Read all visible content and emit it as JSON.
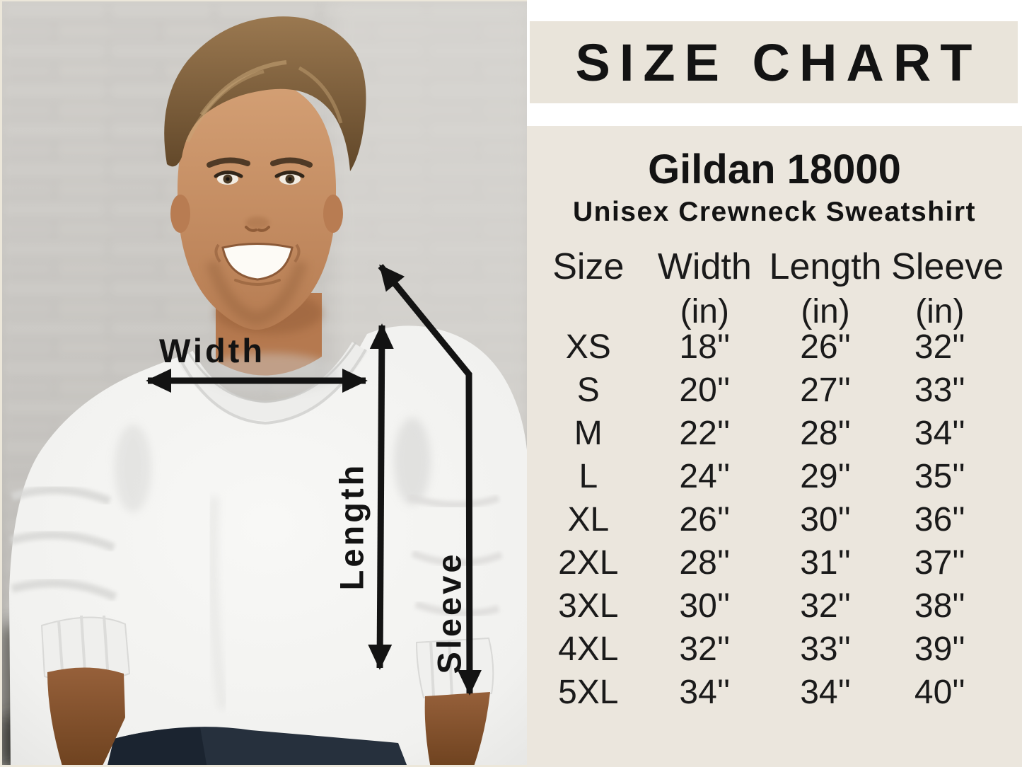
{
  "colors": {
    "band_bg": "#e9e4da",
    "panel_bg": "#ebe6dd",
    "text": "#161616",
    "arrow": "#131313",
    "sweatshirt": "#f4f4f2"
  },
  "photo": {
    "description": "man wearing white crewneck sweatshirt with measurement arrows",
    "measure_labels": {
      "width": "Width",
      "length": "Length",
      "sleeve": "Sleeve"
    }
  },
  "size_chart": {
    "title": "SIZE CHART",
    "product_name": "Gildan 18000",
    "product_subtitle": "Unisex Crewneck Sweatshirt",
    "columns": [
      "Size",
      "Width",
      "Length",
      "Sleeve"
    ],
    "units": [
      "",
      "(in)",
      "(in)",
      "(in)"
    ],
    "rows": [
      [
        "XS",
        "18''",
        "26''",
        "32''"
      ],
      [
        "S",
        "20''",
        "27''",
        "33''"
      ],
      [
        "M",
        "22''",
        "28''",
        "34''"
      ],
      [
        "L",
        "24''",
        "29''",
        "35''"
      ],
      [
        "XL",
        "26''",
        "30''",
        "36''"
      ],
      [
        "2XL",
        "28''",
        "31''",
        "37''"
      ],
      [
        "3XL",
        "30''",
        "32''",
        "38''"
      ],
      [
        "4XL",
        "32''",
        "33''",
        "39''"
      ],
      [
        "5XL",
        "34''",
        "34''",
        "40''"
      ]
    ]
  },
  "chart_data": {
    "type": "table",
    "title": "SIZE CHART",
    "subtitle": "Gildan 18000 Unisex Crewneck Sweatshirt",
    "columns": [
      "Size",
      "Width (in)",
      "Length (in)",
      "Sleeve (in)"
    ],
    "rows": [
      [
        "XS",
        18,
        26,
        32
      ],
      [
        "S",
        20,
        27,
        33
      ],
      [
        "M",
        22,
        28,
        34
      ],
      [
        "L",
        24,
        29,
        35
      ],
      [
        "XL",
        26,
        30,
        36
      ],
      [
        "2XL",
        28,
        31,
        37
      ],
      [
        "3XL",
        30,
        32,
        38
      ],
      [
        "4XL",
        32,
        33,
        39
      ],
      [
        "5XL",
        34,
        34,
        40
      ]
    ]
  }
}
